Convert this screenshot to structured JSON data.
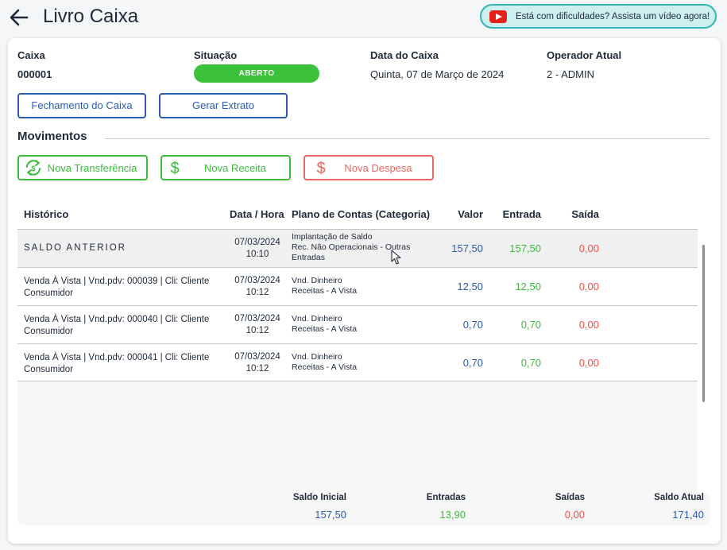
{
  "header": {
    "title": "Livro Caixa",
    "help_text": "Está com dificuldades? Assista um vídeo agora!",
    "help_icon": "youtube-icon",
    "back_icon": "arrow-left-icon"
  },
  "info": {
    "caixa_label": "Caixa",
    "caixa_value": "000001",
    "situacao_label": "Situação",
    "situacao_value": "ABERTO",
    "data_label": "Data do Caixa",
    "data_value": "Quinta, 07 de Março de 2024",
    "operador_label": "Operador Atual",
    "operador_value": "2 - ADMIN"
  },
  "actions": {
    "fechamento": "Fechamento do Caixa",
    "extrato": "Gerar Extrato"
  },
  "movimentos": {
    "title": "Movimentos",
    "transferencia": "Nova Transferência",
    "receita": "Nova Receita",
    "despesa": "Nova Despesa"
  },
  "table": {
    "headers": {
      "historico": "Histórico",
      "data_hora": "Data / Hora",
      "plano": "Plano de Contas (Categoria)",
      "valor": "Valor",
      "entrada": "Entrada",
      "saida": "Saída"
    },
    "rows": [
      {
        "historico": "SALDO ANTERIOR",
        "data": "07/03/2024",
        "hora": "10:10",
        "plano_1": "Implantação de Saldo",
        "plano_2": "Rec. Não Operacionais - Outras",
        "plano_3": "Entradas",
        "valor": "157,50",
        "entrada": "157,50",
        "saida": "0,00"
      },
      {
        "historico_1": "Venda À Vista | Vnd.pdv: 000039 | Cli: Cliente",
        "historico_2": "Consumidor",
        "data": "07/03/2024",
        "hora": "10:12",
        "plano_1": "Vnd. Dinheiro",
        "plano_2": "Receitas - A Vista",
        "valor": "12,50",
        "entrada": "12,50",
        "saida": "0,00"
      },
      {
        "historico_1": "Venda À Vista | Vnd.pdv: 000040 | Cli: Cliente",
        "historico_2": "Consumidor",
        "data": "07/03/2024",
        "hora": "10:12",
        "plano_1": "Vnd. Dinheiro",
        "plano_2": "Receitas - A Vista",
        "valor": "0,70",
        "entrada": "0,70",
        "saida": "0,00"
      },
      {
        "historico_1": "Venda À Vista | Vnd.pdv: 000041 | Cli: Cliente",
        "historico_2": "Consumidor",
        "data": "07/03/2024",
        "hora": "10:12",
        "plano_1": "Vnd. Dinheiro",
        "plano_2": "Receitas - A Vista",
        "valor": "0,70",
        "entrada": "0,70",
        "saida": "0,00"
      }
    ]
  },
  "totals": {
    "saldo_inicial_label": "Saldo Inicial",
    "saldo_inicial_value": "157,50",
    "entradas_label": "Entradas",
    "entradas_value": "13,90",
    "saidas_label": "Saídas",
    "saidas_value": "0,00",
    "saldo_atual_label": "Saldo Atual",
    "saldo_atual_value": "171,40"
  },
  "colors": {
    "blue": "#2b5bb5",
    "green": "#3cbb3b",
    "red": "#ea4f4c",
    "status_green": "#3cc13b"
  }
}
